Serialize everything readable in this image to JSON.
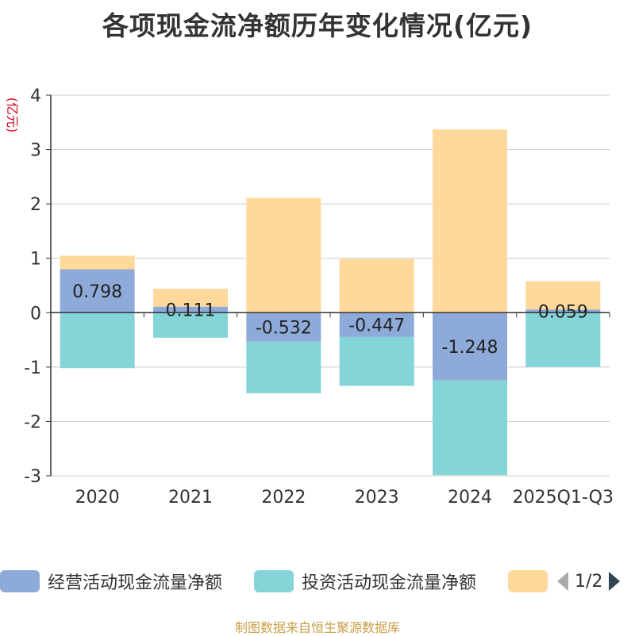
{
  "title": "各项现金流净额历年变化情况(亿元)",
  "chart_data": {
    "type": "bar",
    "stacked": true,
    "ylabel": "(亿元)",
    "ylim": [
      -3,
      4
    ],
    "yticks": [
      -3,
      -2,
      -1,
      0,
      1,
      2,
      3,
      4
    ],
    "categories": [
      "2020",
      "2021",
      "2022",
      "2023",
      "2024",
      "2025Q1-Q3"
    ],
    "series": [
      {
        "name": "经营活动现金流量净额",
        "color": "#8eaad9",
        "values": [
          0.798,
          0.111,
          -0.532,
          -0.447,
          -1.248,
          0.059
        ],
        "labels": [
          "0.798",
          "0.111",
          "-0.532",
          "-0.447",
          "-1.248",
          "0.059"
        ]
      },
      {
        "name": "投资活动现金流量净额",
        "color": "#85d5d8",
        "values": [
          -1.02,
          -0.46,
          -0.95,
          -0.9,
          -1.74,
          -1.0
        ]
      },
      {
        "name": "",
        "color": "#ffd99b",
        "values": [
          0.25,
          0.33,
          2.11,
          0.99,
          3.37,
          0.52
        ]
      }
    ]
  },
  "legend": {
    "items": [
      {
        "label": "经营活动现金流量净额",
        "color": "#8eaad9"
      },
      {
        "label": "投资活动现金流量净额",
        "color": "#85d5d8"
      },
      {
        "label": "",
        "color": "#ffd99b"
      }
    ],
    "page_indicator": "1/2"
  },
  "source": "制图数据来自恒生聚源数据库"
}
